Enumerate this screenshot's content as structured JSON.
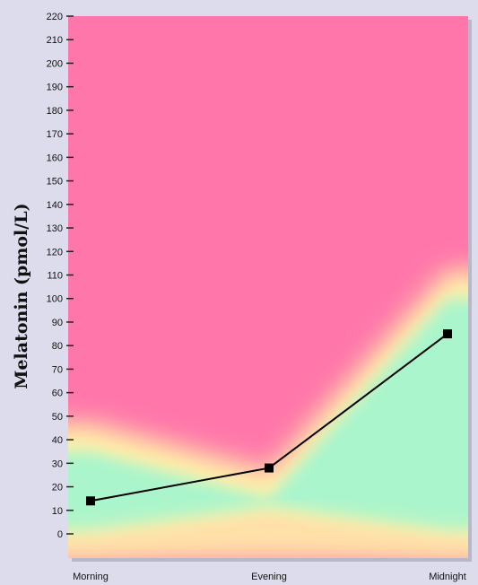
{
  "chart_data": {
    "type": "line",
    "title": "",
    "xlabel": "",
    "ylabel": "Melatonin (pmol/L)",
    "categories": [
      "Morning",
      "Evening",
      "Midnight"
    ],
    "series": [
      {
        "values": [
          14,
          28,
          85
        ]
      }
    ],
    "ylim": [
      0,
      220
    ],
    "yticks": [
      0,
      10,
      20,
      30,
      40,
      50,
      60,
      70,
      80,
      90,
      100,
      110,
      120,
      130,
      140,
      150,
      160,
      170,
      180,
      190,
      200,
      210,
      220
    ],
    "background_zones": {
      "normal_low": [
        0,
        10,
        0
      ],
      "normal_high": [
        35,
        15,
        100
      ]
    },
    "colors": {
      "line": "#000000",
      "marker": "#000000",
      "high_zone": "#ff77aa",
      "normal_zone": "#aaf5cc",
      "transition": "#fff0a8",
      "page": "#dcdcec"
    },
    "grid": false,
    "legend": "none"
  }
}
